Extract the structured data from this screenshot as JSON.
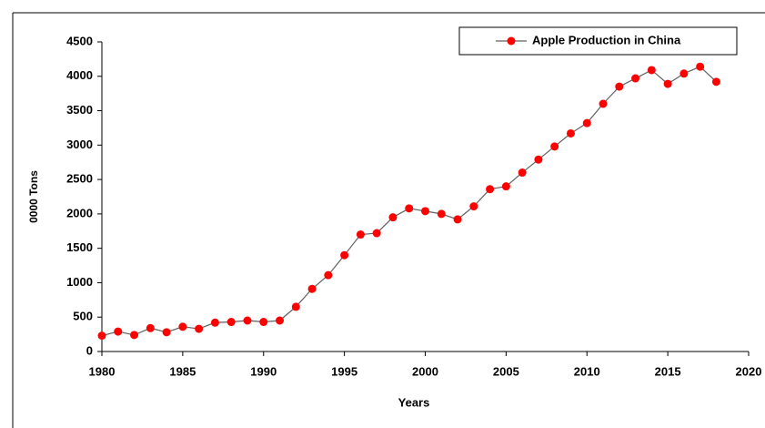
{
  "chart_data": {
    "type": "line",
    "x_label": "Years",
    "y_label": "0000 Tons",
    "x": [
      1980,
      1981,
      1982,
      1983,
      1984,
      1985,
      1986,
      1987,
      1988,
      1989,
      1990,
      1991,
      1992,
      1993,
      1994,
      1995,
      1996,
      1997,
      1998,
      1999,
      2000,
      2001,
      2002,
      2003,
      2004,
      2005,
      2006,
      2007,
      2008,
      2009,
      2010,
      2011,
      2012,
      2013,
      2014,
      2015,
      2016,
      2017,
      2018
    ],
    "series": [
      {
        "name": "Apple Production in China",
        "color": "#606060",
        "marker_color": "#ff0000",
        "values": [
          230,
          290,
          240,
          340,
          280,
          360,
          330,
          420,
          430,
          450,
          430,
          450,
          650,
          910,
          1110,
          1400,
          1700,
          1720,
          1950,
          2080,
          2040,
          2000,
          1920,
          2110,
          2360,
          2400,
          2600,
          2790,
          2980,
          3170,
          3320,
          3600,
          3850,
          3970,
          4090,
          3890,
          4040,
          4140,
          3920
        ]
      }
    ],
    "xlim": [
      1980,
      2020
    ],
    "xticks": [
      1980,
      1985,
      1990,
      1995,
      2000,
      2005,
      2010,
      2015,
      2020
    ],
    "ylim": [
      0,
      4500
    ],
    "yticks": [
      0,
      500,
      1000,
      1500,
      2000,
      2500,
      3000,
      3500,
      4000,
      4500
    ],
    "grid": false,
    "legend": "upper right"
  }
}
